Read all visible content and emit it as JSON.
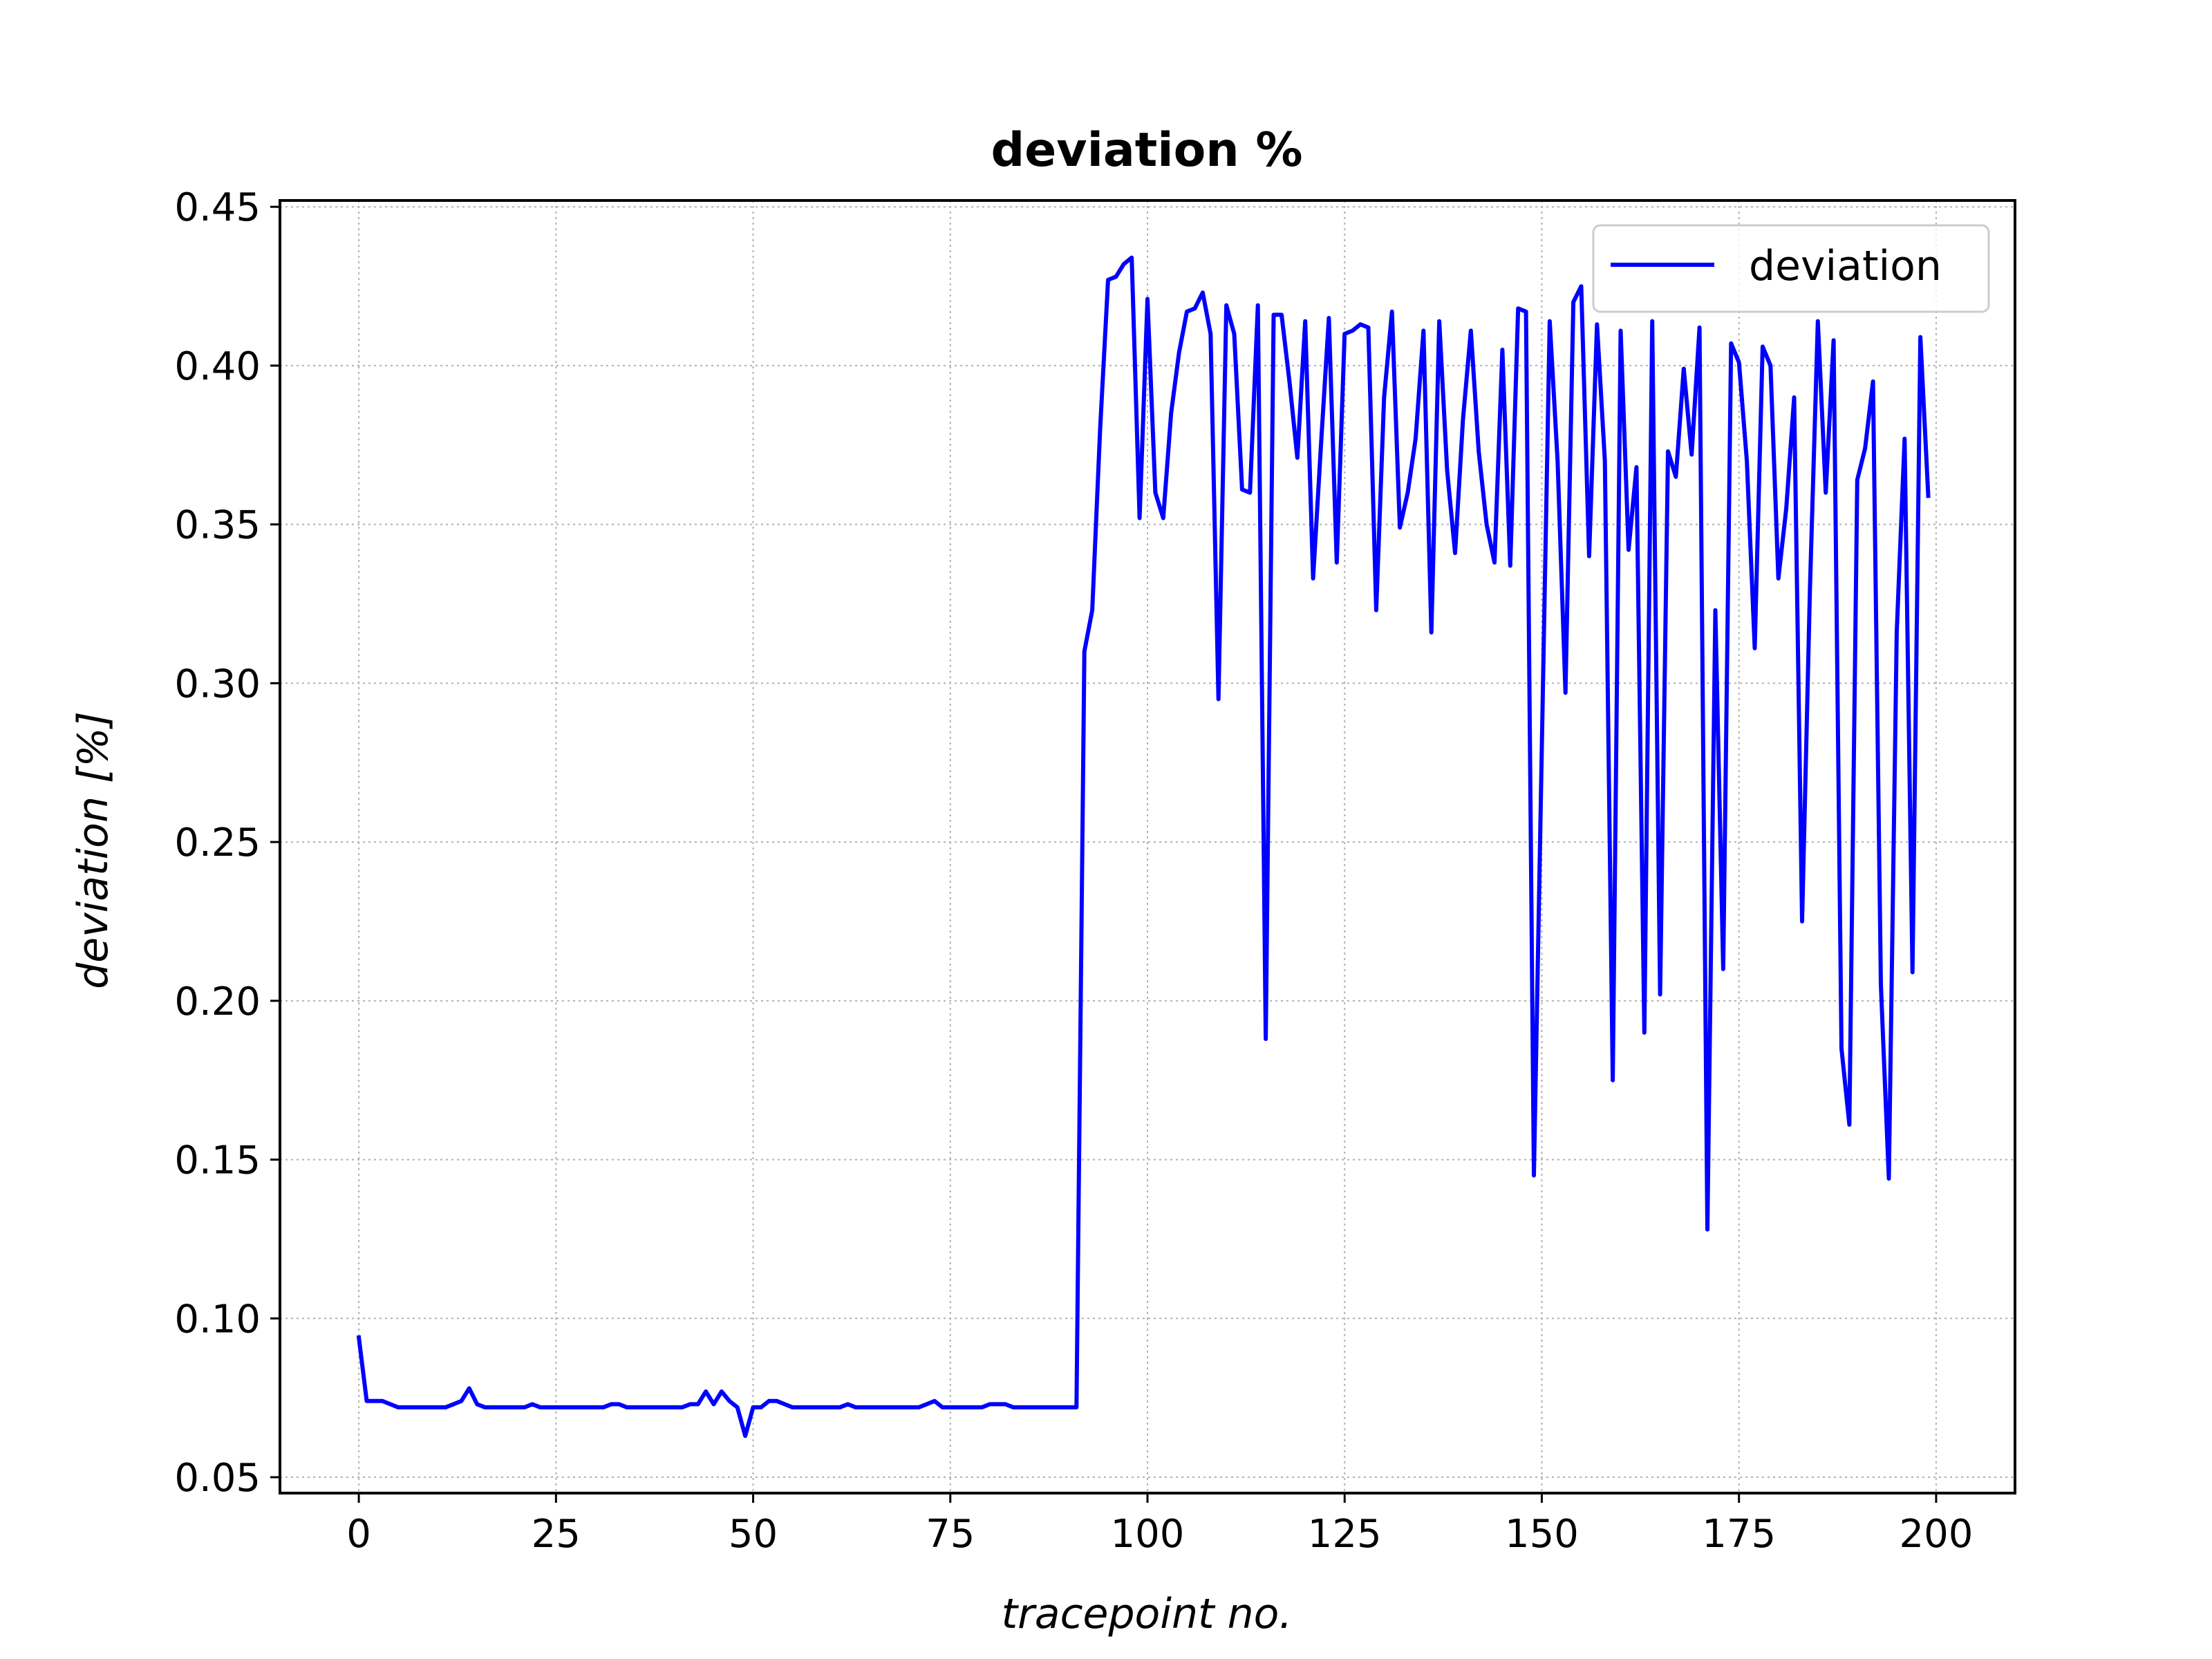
{
  "colors": {
    "line": "#0000ff",
    "grid": "#b0b0b0",
    "axes": "#000000",
    "legend_border": "#cccccc",
    "background": "#ffffff"
  },
  "chart_data": {
    "type": "line",
    "title": "deviation %",
    "xlabel": "tracepoint no.",
    "ylabel": "deviation [%]",
    "xlim": [
      -10,
      210
    ],
    "ylim": [
      0.045,
      0.452
    ],
    "xticks": [
      0,
      25,
      50,
      75,
      100,
      125,
      150,
      175,
      200
    ],
    "xtick_labels": [
      "0",
      "25",
      "50",
      "75",
      "100",
      "125",
      "150",
      "175",
      "200"
    ],
    "yticks": [
      0.05,
      0.1,
      0.15,
      0.2,
      0.25,
      0.3,
      0.35,
      0.4,
      0.45
    ],
    "ytick_labels": [
      "0.05",
      "0.10",
      "0.15",
      "0.20",
      "0.25",
      "0.30",
      "0.35",
      "0.40",
      "0.45"
    ],
    "grid": true,
    "legend_position": "top-right",
    "series": [
      {
        "name": "deviation",
        "color": "#0000ff",
        "x": [
          0,
          1,
          2,
          3,
          4,
          5,
          6,
          7,
          8,
          9,
          10,
          11,
          12,
          13,
          14,
          15,
          16,
          17,
          18,
          19,
          20,
          21,
          22,
          23,
          24,
          25,
          26,
          27,
          28,
          29,
          30,
          31,
          32,
          33,
          34,
          35,
          36,
          37,
          38,
          39,
          40,
          41,
          42,
          43,
          44,
          45,
          46,
          47,
          48,
          49,
          50,
          51,
          52,
          53,
          54,
          55,
          56,
          57,
          58,
          59,
          60,
          61,
          62,
          63,
          64,
          65,
          66,
          67,
          68,
          69,
          70,
          71,
          72,
          73,
          74,
          75,
          76,
          77,
          78,
          79,
          80,
          81,
          82,
          83,
          84,
          85,
          86,
          87,
          88,
          89,
          90,
          91,
          92,
          93,
          94,
          95,
          96,
          97,
          98,
          99,
          100,
          101,
          102,
          103,
          104,
          105,
          106,
          107,
          108,
          109,
          110,
          111,
          112,
          113,
          114,
          115,
          116,
          117,
          118,
          119,
          120,
          121,
          122,
          123,
          124,
          125,
          126,
          127,
          128,
          129,
          130,
          131,
          132,
          133,
          134,
          135,
          136,
          137,
          138,
          139,
          140,
          141,
          142,
          143,
          144,
          145,
          146,
          147,
          148,
          149,
          150,
          151,
          152,
          153,
          154,
          155,
          156,
          157,
          158,
          159,
          160,
          161,
          162,
          163,
          164,
          165,
          166,
          167,
          168,
          169,
          170,
          171,
          172,
          173,
          174,
          175,
          176,
          177,
          178,
          179,
          180,
          181,
          182,
          183,
          184,
          185,
          186,
          187,
          188,
          189,
          190,
          191,
          192,
          193,
          194,
          195,
          196,
          197,
          198,
          199
        ],
        "y": [
          0.094,
          0.074,
          0.074,
          0.074,
          0.073,
          0.072,
          0.072,
          0.072,
          0.072,
          0.072,
          0.072,
          0.072,
          0.073,
          0.074,
          0.078,
          0.073,
          0.072,
          0.072,
          0.072,
          0.072,
          0.072,
          0.072,
          0.073,
          0.072,
          0.072,
          0.072,
          0.072,
          0.072,
          0.072,
          0.072,
          0.072,
          0.072,
          0.073,
          0.073,
          0.072,
          0.072,
          0.072,
          0.072,
          0.072,
          0.072,
          0.072,
          0.072,
          0.073,
          0.073,
          0.077,
          0.073,
          0.077,
          0.074,
          0.072,
          0.063,
          0.072,
          0.072,
          0.074,
          0.074,
          0.073,
          0.072,
          0.072,
          0.072,
          0.072,
          0.072,
          0.072,
          0.072,
          0.073,
          0.072,
          0.072,
          0.072,
          0.072,
          0.072,
          0.072,
          0.072,
          0.072,
          0.072,
          0.073,
          0.074,
          0.072,
          0.072,
          0.072,
          0.072,
          0.072,
          0.072,
          0.073,
          0.073,
          0.073,
          0.072,
          0.072,
          0.072,
          0.072,
          0.072,
          0.072,
          0.072,
          0.072,
          0.072,
          0.31,
          0.323,
          0.38,
          0.427,
          0.428,
          0.432,
          0.434,
          0.352,
          0.421,
          0.36,
          0.352,
          0.385,
          0.404,
          0.417,
          0.418,
          0.423,
          0.41,
          0.295,
          0.419,
          0.41,
          0.361,
          0.36,
          0.419,
          0.188,
          0.416,
          0.416,
          0.395,
          0.371,
          0.414,
          0.333,
          0.375,
          0.415,
          0.338,
          0.41,
          0.411,
          0.413,
          0.412,
          0.323,
          0.39,
          0.417,
          0.349,
          0.36,
          0.377,
          0.411,
          0.316,
          0.414,
          0.367,
          0.341,
          0.383,
          0.411,
          0.373,
          0.35,
          0.338,
          0.405,
          0.337,
          0.418,
          0.417,
          0.145,
          0.28,
          0.414,
          0.37,
          0.297,
          0.42,
          0.425,
          0.34,
          0.413,
          0.37,
          0.175,
          0.411,
          0.342,
          0.368,
          0.19,
          0.414,
          0.202,
          0.373,
          0.365,
          0.399,
          0.372,
          0.412,
          0.128,
          0.323,
          0.21,
          0.407,
          0.401,
          0.37,
          0.311,
          0.406,
          0.4,
          0.333,
          0.355,
          0.39,
          0.225,
          0.33,
          0.414,
          0.36,
          0.408,
          0.185,
          0.161,
          0.364,
          0.374,
          0.395,
          0.205,
          0.144,
          0.316,
          0.377,
          0.209,
          0.409,
          0.359
        ]
      }
    ]
  }
}
